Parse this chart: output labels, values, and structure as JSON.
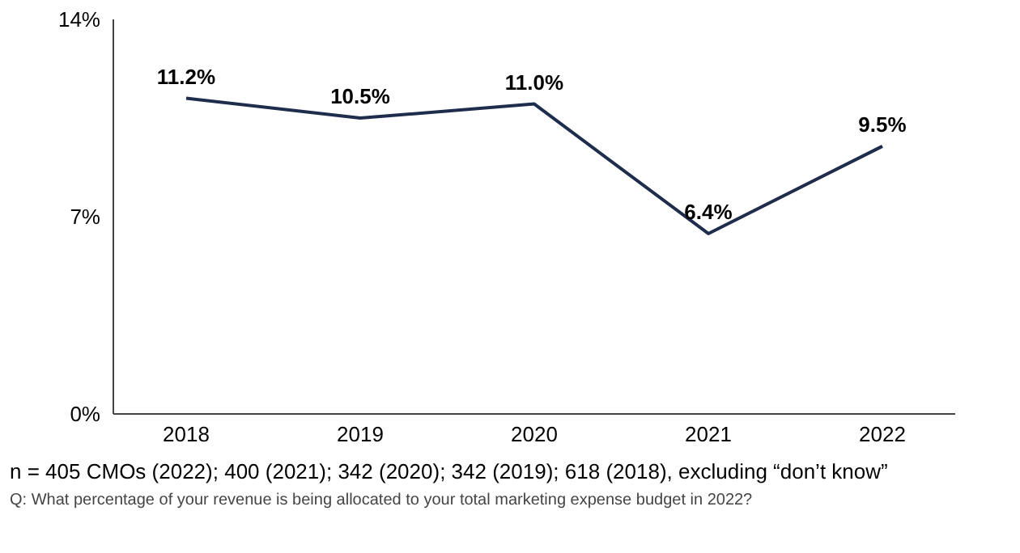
{
  "chart_data": {
    "type": "line",
    "categories": [
      "2018",
      "2019",
      "2020",
      "2021",
      "2022"
    ],
    "series": [
      {
        "color": "#1f2d4d",
        "values": [
          11.2,
          10.5,
          11.0,
          6.4,
          9.5
        ],
        "value_labels": [
          "11.2%",
          "10.5%",
          "11.0%",
          "6.4%",
          "9.5%"
        ]
      }
    ],
    "ylim": [
      0,
      14
    ],
    "yticks": [
      {
        "value": 0,
        "label": "0%"
      },
      {
        "value": 7,
        "label": "7%"
      },
      {
        "value": 14,
        "label": "14%"
      }
    ],
    "marker": "none",
    "line_style": "solid",
    "grid": false,
    "legend": false,
    "annotations": [
      "n = 405 CMOs (2022); 400 (2021); 342 (2020); 342 (2019); 618 (2018), excluding “don’t know”",
      "Q: What percentage of your revenue is being allocated to your total marketing expense budget in 2022?"
    ]
  }
}
